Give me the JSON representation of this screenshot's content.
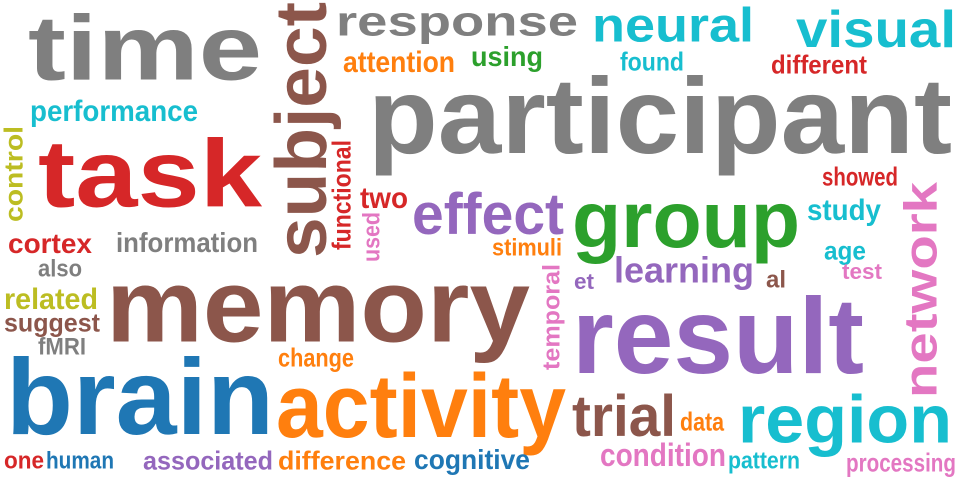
{
  "palette": {
    "gray": "#7f7f7f",
    "brown": "#8c564b",
    "cyan": "#17becf",
    "red": "#d62728",
    "orange": "#ff7f0e",
    "green": "#2ca02c",
    "olive": "#bcbd22",
    "purple": "#9467bd",
    "pink": "#e377c2",
    "blue": "#1f77b4"
  },
  "words": [
    {
      "key": "time",
      "text": "time",
      "color": "gray"
    },
    {
      "key": "subject",
      "text": "subject",
      "color": "brown"
    },
    {
      "key": "response",
      "text": "response",
      "color": "gray"
    },
    {
      "key": "neural",
      "text": "neural",
      "color": "cyan"
    },
    {
      "key": "visual",
      "text": "visual",
      "color": "cyan"
    },
    {
      "key": "attention",
      "text": "attention",
      "color": "orange"
    },
    {
      "key": "using",
      "text": "using",
      "color": "green"
    },
    {
      "key": "found",
      "text": "found",
      "color": "cyan"
    },
    {
      "key": "different",
      "text": "different",
      "color": "red"
    },
    {
      "key": "performance",
      "text": "performance",
      "color": "cyan"
    },
    {
      "key": "participant",
      "text": "participant",
      "color": "gray"
    },
    {
      "key": "control",
      "text": "control",
      "color": "olive"
    },
    {
      "key": "task",
      "text": "task",
      "color": "red"
    },
    {
      "key": "functional",
      "text": "functional",
      "color": "red"
    },
    {
      "key": "showed",
      "text": "showed",
      "color": "red"
    },
    {
      "key": "two",
      "text": "two",
      "color": "red"
    },
    {
      "key": "effect",
      "text": "effect",
      "color": "purple"
    },
    {
      "key": "group",
      "text": "group",
      "color": "green"
    },
    {
      "key": "network",
      "text": "network",
      "color": "pink"
    },
    {
      "key": "study",
      "text": "study",
      "color": "cyan"
    },
    {
      "key": "cortex",
      "text": "cortex",
      "color": "red"
    },
    {
      "key": "information",
      "text": "information",
      "color": "gray"
    },
    {
      "key": "used",
      "text": "used",
      "color": "pink"
    },
    {
      "key": "stimuli",
      "text": "stimuli",
      "color": "orange"
    },
    {
      "key": "age",
      "text": "age",
      "color": "cyan"
    },
    {
      "key": "also",
      "text": "also",
      "color": "gray"
    },
    {
      "key": "memory",
      "text": "memory",
      "color": "brown"
    },
    {
      "key": "learning",
      "text": "learning",
      "color": "purple"
    },
    {
      "key": "test",
      "text": "test",
      "color": "pink"
    },
    {
      "key": "et",
      "text": "et",
      "color": "purple"
    },
    {
      "key": "al",
      "text": "al",
      "color": "brown"
    },
    {
      "key": "temporal",
      "text": "temporal",
      "color": "pink"
    },
    {
      "key": "related",
      "text": "related",
      "color": "olive"
    },
    {
      "key": "suggest",
      "text": "suggest",
      "color": "brown"
    },
    {
      "key": "result",
      "text": "result",
      "color": "purple"
    },
    {
      "key": "fMRI",
      "text": "fMRI",
      "color": "gray"
    },
    {
      "key": "change",
      "text": "change",
      "color": "orange"
    },
    {
      "key": "brain",
      "text": "brain",
      "color": "blue"
    },
    {
      "key": "activity",
      "text": "activity",
      "color": "orange"
    },
    {
      "key": "trial",
      "text": "trial",
      "color": "brown"
    },
    {
      "key": "region",
      "text": "region",
      "color": "cyan"
    },
    {
      "key": "data",
      "text": "data",
      "color": "orange"
    },
    {
      "key": "condition",
      "text": "condition",
      "color": "pink"
    },
    {
      "key": "one",
      "text": "one",
      "color": "red"
    },
    {
      "key": "human",
      "text": "human",
      "color": "blue"
    },
    {
      "key": "associated",
      "text": "associated",
      "color": "purple"
    },
    {
      "key": "difference",
      "text": "difference",
      "color": "orange"
    },
    {
      "key": "cognitive",
      "text": "cognitive",
      "color": "blue"
    },
    {
      "key": "pattern",
      "text": "pattern",
      "color": "cyan"
    },
    {
      "key": "processing",
      "text": "processing",
      "color": "pink"
    }
  ]
}
